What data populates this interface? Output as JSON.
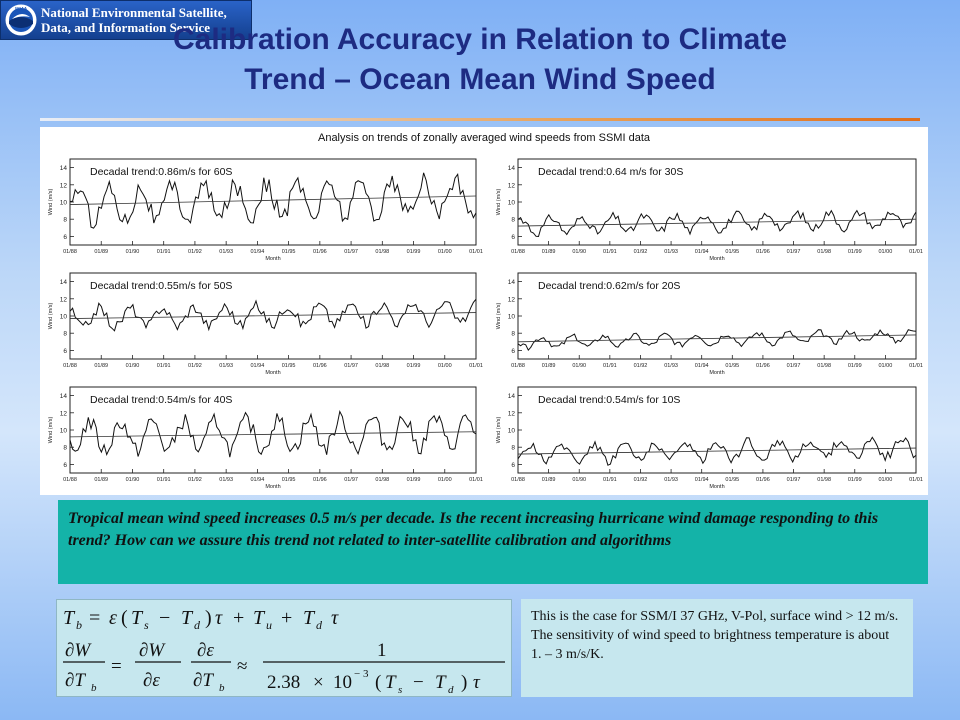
{
  "header": {
    "org_name": "National Environmental Satellite,\nData, and Information Service",
    "logo_text": "NOAA",
    "logo_colors": {
      "ring": "#ffffff",
      "sky": "#1a55b8",
      "bird": "#ffffff",
      "sea": "#0b2f74"
    }
  },
  "slide": {
    "title": "Calibration Accuracy in Relation to Climate\nTrend – Ocean Mean Wind Speed"
  },
  "figure": {
    "title": "Analysis on trends of zonally averaged wind speeds from SSMI data",
    "accent_colors": {
      "line": "#111111",
      "trend": "#333333",
      "axes": "#222222"
    }
  },
  "chart_data": [
    {
      "type": "line",
      "label": "Decadal trend:0.86m/s for 60S",
      "xlabel": "Month",
      "ylabel": "Wind (m/s)",
      "x_ticks": [
        "01/88",
        "01/89",
        "01/90",
        "01/91",
        "01/92",
        "01/93",
        "01/94",
        "01/95",
        "01/96",
        "01/97",
        "01/98",
        "01/99",
        "01/00",
        "01/01"
      ],
      "y_ticks": [
        6,
        8,
        10,
        12,
        14
      ],
      "ylim": [
        5,
        15
      ],
      "seasonal_mean": 10.2,
      "seasonal_amplitude": 1.9,
      "trend": [
        9.7,
        10.7
      ]
    },
    {
      "type": "line",
      "label": "Decadal trend:0.64 m/s for 30S",
      "xlabel": "Month",
      "ylabel": "Wind (m/s)",
      "x_ticks": [
        "01/88",
        "01/89",
        "01/90",
        "01/91",
        "01/92",
        "01/93",
        "01/94",
        "01/95",
        "01/96",
        "01/97",
        "01/98",
        "01/99",
        "01/00",
        "01/01"
      ],
      "y_ticks": [
        6,
        8,
        10,
        12,
        14
      ],
      "ylim": [
        5,
        15
      ],
      "seasonal_mean": 7.6,
      "seasonal_amplitude": 0.9,
      "trend": [
        7.2,
        8.0
      ]
    },
    {
      "type": "line",
      "label": "Decadal trend:0.55m/s for 50S",
      "xlabel": "Month",
      "ylabel": "Wind (m/s)",
      "x_ticks": [
        "01/88",
        "01/89",
        "01/90",
        "01/91",
        "01/92",
        "01/93",
        "01/94",
        "01/95",
        "01/96",
        "01/97",
        "01/98",
        "01/99",
        "01/00",
        "01/01"
      ],
      "y_ticks": [
        6,
        8,
        10,
        12,
        14
      ],
      "ylim": [
        5,
        15
      ],
      "seasonal_mean": 10.1,
      "seasonal_amplitude": 1.1,
      "trend": [
        9.7,
        10.4
      ]
    },
    {
      "type": "line",
      "label": "Decadal trend:0.62m/s for 20S",
      "xlabel": "Month",
      "ylabel": "Wind (m/s)",
      "x_ticks": [
        "01/88",
        "01/89",
        "01/90",
        "01/91",
        "01/92",
        "01/93",
        "01/94",
        "01/95",
        "01/96",
        "01/97",
        "01/98",
        "01/99",
        "01/00",
        "01/01"
      ],
      "y_ticks": [
        6,
        8,
        10,
        12,
        14
      ],
      "ylim": [
        5,
        15
      ],
      "seasonal_mean": 7.3,
      "seasonal_amplitude": 0.6,
      "trend": [
        7.0,
        7.8
      ]
    },
    {
      "type": "line",
      "label": "Decadal trend:0.54m/s for 40S",
      "xlabel": "Month",
      "ylabel": "Wind (m/s)",
      "x_ticks": [
        "01/88",
        "01/89",
        "01/90",
        "01/91",
        "01/92",
        "01/93",
        "01/94",
        "01/95",
        "01/96",
        "01/97",
        "01/98",
        "01/99",
        "01/00",
        "01/01"
      ],
      "y_ticks": [
        6,
        8,
        10,
        12,
        14
      ],
      "ylim": [
        5,
        15
      ],
      "seasonal_mean": 9.5,
      "seasonal_amplitude": 1.7,
      "trend": [
        9.2,
        9.8
      ]
    },
    {
      "type": "line",
      "label": "Decadal trend:0.54m/s for 10S",
      "xlabel": "Month",
      "ylabel": "Wind (m/s)",
      "x_ticks": [
        "01/88",
        "01/89",
        "01/90",
        "01/91",
        "01/92",
        "01/93",
        "01/94",
        "01/95",
        "01/96",
        "01/97",
        "01/98",
        "01/99",
        "01/00",
        "01/01"
      ],
      "y_ticks": [
        6,
        8,
        10,
        12,
        14
      ],
      "ylim": [
        5,
        15
      ],
      "seasonal_mean": 7.6,
      "seasonal_amplitude": 1.0,
      "trend": [
        7.2,
        7.9
      ]
    }
  ],
  "note": {
    "text": "Tropical mean wind speed increases 0.5 m/s per decade. Is the recent increasing hurricane wind damage responding to this trend? How can we assure this trend not related to inter-satellite calibration and algorithms"
  },
  "equations": {
    "line1": {
      "Tb": "T",
      "b": "b",
      "eq1": "=",
      "eps1": "ε",
      "open1": "(",
      "Ts": "T",
      "s": "s",
      "minus1": "−",
      "Td1": "T",
      "d1": "d",
      "close1": ")",
      "tau1": "τ",
      "plus1": "+",
      "Tu": "T",
      "u": "u",
      "plus2": "+",
      "Td2": "T",
      "d2": "d",
      "tau2": "τ"
    },
    "line2": {
      "dW1": "∂W",
      "dTb1": "∂T",
      "b1": "b",
      "eq2": "=",
      "dW2": "∂W",
      "deps2": "∂ε",
      "deps3": "∂ε",
      "dTb3": "∂T",
      "b3": "b",
      "approx": "≈",
      "one": "1",
      "coef": "2.38",
      "times": "×",
      "ten": "10",
      "exp": "− 3",
      "open2": "(",
      "Ts2": "T",
      "s2": "s",
      "minus2": "−",
      "Td3": "T",
      "d3": "d",
      "close2": ")",
      "tau3": "τ"
    }
  },
  "sensitivity": {
    "text": "This is the case for SSM/I 37 GHz, V-Pol, surface wind > 12 m/s. The sensitivity of wind speed to brightness temperature is about 1. – 3 m/s/K."
  }
}
